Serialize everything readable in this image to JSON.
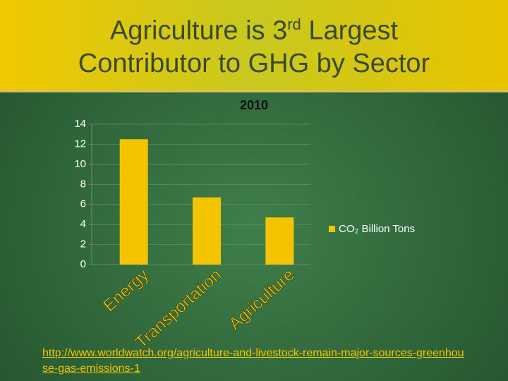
{
  "slide_title": {
    "before": "Agriculture is 3",
    "superscript": "rd",
    "after": "Largest",
    "line2": "Contributor to GHG by Sector"
  },
  "chart_data": {
    "type": "bar",
    "title": "2010",
    "categories": [
      "Energy",
      "Transportation",
      "Agriculture"
    ],
    "series": [
      {
        "name": "CO₂ Billion Tons",
        "color": "#f5c400",
        "values": [
          12.5,
          6.7,
          4.7
        ]
      }
    ],
    "ylim": [
      0,
      14
    ],
    "yticks": [
      0,
      2,
      4,
      6,
      8,
      10,
      12,
      14
    ],
    "grid": true,
    "legend": "right"
  },
  "source_link": "http://www.worldwatch.org/agriculture-and-livestock-remain-major-sources-greenhouse-gas-emissions-1"
}
